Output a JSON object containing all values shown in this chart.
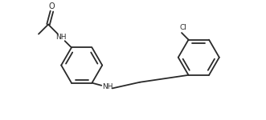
{
  "bg_color": "#ffffff",
  "line_color": "#2a2a2a",
  "line_width": 1.3,
  "fig_width": 3.31,
  "fig_height": 1.5,
  "dpi": 100,
  "font_size_nh": 6.5,
  "font_size_cl": 6.5,
  "font_size_o": 7.0,
  "text_color": "#2a2a2a",
  "xlim": [
    0,
    10
  ],
  "ylim": [
    0,
    4.5
  ]
}
